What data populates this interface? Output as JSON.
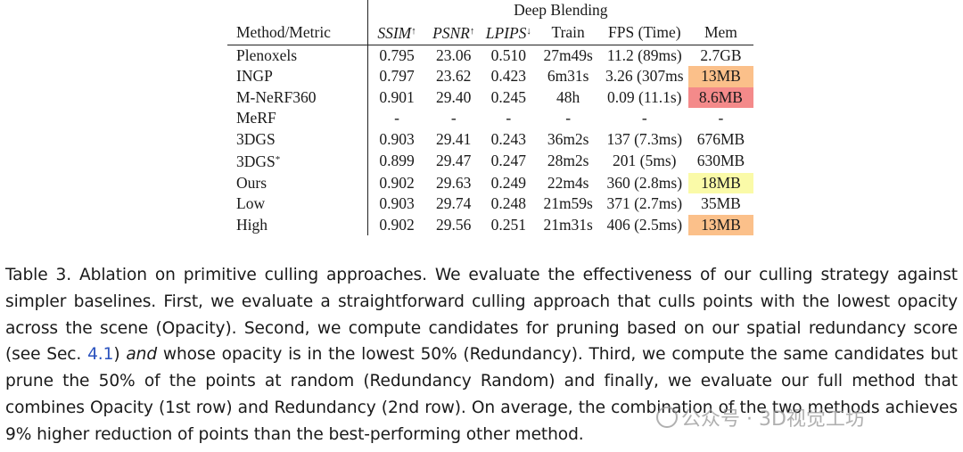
{
  "table": {
    "dataset": "Deep Blending",
    "headers": {
      "method": "Method/Metric",
      "ssim": "SSIM",
      "ssim_arrow": "↑",
      "psnr": "PSNR",
      "psnr_arrow": "↑",
      "lpips": "LPIPS",
      "lpips_arrow": "↓",
      "train": "Train",
      "fps": "FPS (Time)",
      "mem": "Mem"
    },
    "rows": [
      {
        "method": "Plenoxels",
        "ssim": "0.795",
        "psnr": "23.06",
        "lpips": "0.510",
        "train": "27m49s",
        "fps": "11.2 (89ms)",
        "mem": "2.7GB",
        "mem_color": "#ffffff"
      },
      {
        "method": "INGP",
        "ssim": "0.797",
        "psnr": "23.62",
        "lpips": "0.423",
        "train": "6m31s",
        "fps": "3.26 (307ms",
        "mem": "13MB",
        "mem_color": "#fbc08a"
      },
      {
        "method": "M-NeRF360",
        "ssim": "0.901",
        "psnr": "29.40",
        "lpips": "0.245",
        "train": "48h",
        "fps": "0.09 (11.1s)",
        "mem": "8.6MB",
        "mem_color": "#f48a8a"
      },
      {
        "method": "MeRF",
        "ssim": "-",
        "psnr": "-",
        "lpips": "-",
        "train": "-",
        "fps": "-",
        "mem": "-",
        "mem_color": "#ffffff"
      },
      {
        "method": "3DGS",
        "ssim": "0.903",
        "psnr": "29.41",
        "lpips": "0.243",
        "train": "36m2s",
        "fps": "137 (7.3ms)",
        "mem": "676MB",
        "mem_color": "#ffffff"
      },
      {
        "method": "3DGS",
        "method_mark": "*",
        "ssim": "0.899",
        "psnr": "29.47",
        "lpips": "0.247",
        "train": "28m2s",
        "fps": "201 (5ms)",
        "mem": "630MB",
        "mem_color": "#ffffff"
      },
      {
        "method": "Ours",
        "ssim": "0.902",
        "psnr": "29.63",
        "lpips": "0.249",
        "train": "22m4s",
        "fps": "360 (2.8ms)",
        "mem": "18MB",
        "mem_color": "#fafaa8"
      },
      {
        "method": "Low",
        "ssim": "0.903",
        "psnr": "29.74",
        "lpips": "0.248",
        "train": "21m59s",
        "fps": "371 (2.7ms)",
        "mem": "35MB",
        "mem_color": "#ffffff"
      },
      {
        "method": "High",
        "ssim": "0.902",
        "psnr": "29.56",
        "lpips": "0.251",
        "train": "21m31s",
        "fps": "406 (2.5ms)",
        "mem": "13MB",
        "mem_color": "#fbc08a"
      }
    ]
  },
  "caption": {
    "t1": "Table 3. Ablation on primitive culling approaches. We evaluate the effectiveness of our culling strategy against simpler baselines. First, we evaluate a straightforward culling approach that culls points with the lowest opacity across the scene (Opacity). Second, we compute candidates for pruning based on our spatial redundancy score (see Sec. ",
    "ref": "4.1",
    "t2": ") ",
    "and": "and",
    "t3": " whose opacity is in the lowest 50% (Redundancy). Third, we compute the same candidates but prune the 50% of the points at random (Redundancy Random) and finally, we evaluate our full method that combines Opacity (1st row) and Redundancy (2nd row). On average, the combination of the two methods achieves 9% higher reduction of points than the best-performing other method."
  },
  "watermark": "公众号 · 3D视觉工坊"
}
